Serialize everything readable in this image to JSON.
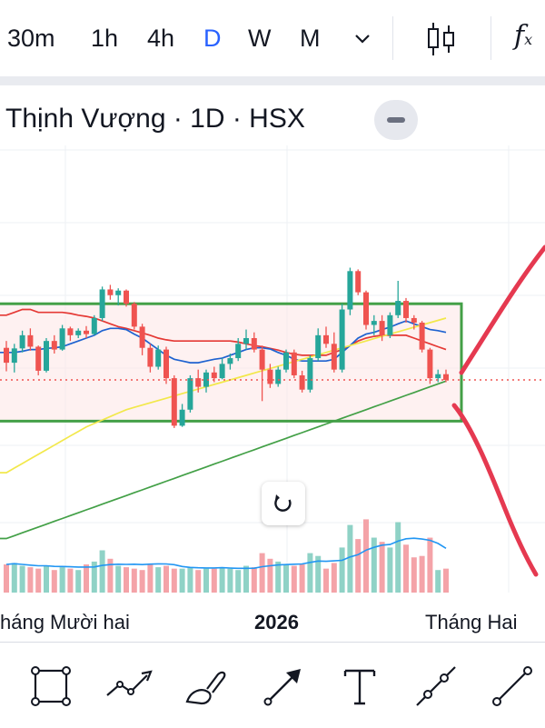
{
  "timeframes": [
    {
      "label": "30m",
      "active": false
    },
    {
      "label": "1h",
      "active": false
    },
    {
      "label": "4h",
      "active": false
    },
    {
      "label": "D",
      "active": true
    },
    {
      "label": "W",
      "active": false
    },
    {
      "label": "M",
      "active": false
    }
  ],
  "timeframe_more_icon": "chevron-down-icon",
  "chart_type_icon": "candlestick-icon",
  "indicators_icon": "function-icon",
  "symbol": {
    "title": "Thịnh Vượng · 1D · HSX",
    "collapse_icon": "minus-icon"
  },
  "time_axis": {
    "labels": [
      "háng Mười hai",
      "2026",
      "Tháng Hai"
    ]
  },
  "reset_icon": "reset-rotate-icon",
  "drawing_tools": [
    {
      "name": "rectangle-tool",
      "icon": "rectangle-icon"
    },
    {
      "name": "polyline-tool",
      "icon": "polyline-icon"
    },
    {
      "name": "brush-tool",
      "icon": "brush-icon"
    },
    {
      "name": "arrow-tool",
      "icon": "arrow-icon"
    },
    {
      "name": "text-tool",
      "icon": "text-icon"
    },
    {
      "name": "trendline-tool",
      "icon": "trendline-icon"
    },
    {
      "name": "line-tool",
      "icon": "line-icon"
    }
  ],
  "colors": {
    "up": "#26a69a",
    "down": "#ef5350",
    "ma_red": "#e53935",
    "ma_blue": "#1e62d0",
    "ma_yellow": "#f2e84b",
    "ma_green": "#43a047",
    "box": "#43a047",
    "box_fill": "#fde7e7",
    "drawn_arrow": "#e53950",
    "vol_line": "#2196f3",
    "active_tab": "#2962ff"
  },
  "chart_data": {
    "type": "candlestick",
    "ohlc": [
      [
        28.38,
        28.5,
        27.97,
        28.12
      ],
      [
        28.12,
        28.45,
        27.95,
        28.37
      ],
      [
        28.37,
        28.68,
        28.3,
        28.6
      ],
      [
        28.6,
        28.72,
        28.33,
        28.4
      ],
      [
        28.4,
        28.42,
        27.9,
        27.98
      ],
      [
        27.98,
        28.55,
        27.95,
        28.5
      ],
      [
        28.5,
        28.6,
        28.28,
        28.35
      ],
      [
        28.35,
        28.78,
        28.33,
        28.72
      ],
      [
        28.72,
        28.75,
        28.5,
        28.6
      ],
      [
        28.6,
        28.72,
        28.55,
        28.68
      ],
      [
        28.68,
        28.76,
        28.55,
        28.62
      ],
      [
        28.62,
        28.95,
        28.6,
        28.9
      ],
      [
        28.9,
        29.45,
        28.85,
        29.4
      ],
      [
        29.4,
        29.48,
        29.22,
        29.3
      ],
      [
        29.3,
        29.42,
        29.12,
        29.38
      ],
      [
        29.38,
        29.4,
        29.1,
        29.15
      ],
      [
        29.15,
        29.18,
        28.7,
        28.75
      ],
      [
        28.75,
        28.8,
        28.25,
        28.38
      ],
      [
        28.38,
        28.45,
        27.95,
        28.05
      ],
      [
        28.05,
        28.42,
        28.0,
        28.35
      ],
      [
        28.35,
        28.4,
        27.75,
        27.85
      ],
      [
        27.85,
        27.9,
        26.98,
        27.02
      ],
      [
        27.02,
        27.4,
        27.0,
        27.3
      ],
      [
        27.3,
        27.9,
        27.25,
        27.85
      ],
      [
        27.85,
        28.0,
        27.6,
        27.7
      ],
      [
        27.7,
        28.0,
        27.6,
        27.95
      ],
      [
        27.95,
        28.05,
        27.78,
        27.85
      ],
      [
        27.85,
        28.2,
        27.83,
        28.1
      ],
      [
        28.1,
        28.28,
        28.0,
        28.2
      ],
      [
        28.2,
        28.55,
        28.15,
        28.45
      ],
      [
        28.45,
        28.7,
        28.35,
        28.55
      ],
      [
        28.55,
        28.65,
        28.3,
        28.35
      ],
      [
        28.35,
        28.42,
        27.45,
        28.0
      ],
      [
        28.0,
        28.1,
        27.68,
        27.75
      ],
      [
        27.75,
        28.05,
        27.7,
        28.0
      ],
      [
        28.0,
        28.35,
        27.95,
        28.3
      ],
      [
        28.3,
        28.35,
        27.85,
        27.9
      ],
      [
        27.9,
        27.98,
        27.6,
        27.65
      ],
      [
        27.65,
        28.25,
        27.6,
        28.2
      ],
      [
        28.2,
        28.72,
        28.15,
        28.6
      ],
      [
        28.6,
        28.75,
        28.38,
        28.45
      ],
      [
        28.45,
        28.65,
        27.95,
        28.0
      ],
      [
        28.0,
        29.15,
        27.95,
        29.05
      ],
      [
        29.05,
        29.78,
        28.95,
        29.72
      ],
      [
        29.72,
        29.75,
        29.3,
        29.35
      ],
      [
        29.35,
        29.38,
        28.7,
        28.78
      ],
      [
        28.78,
        28.95,
        28.6,
        28.85
      ],
      [
        28.85,
        28.95,
        28.5,
        28.6
      ],
      [
        28.6,
        29.0,
        28.55,
        28.95
      ],
      [
        28.95,
        29.55,
        28.9,
        29.2
      ],
      [
        29.2,
        29.25,
        28.82,
        28.9
      ],
      [
        28.9,
        28.95,
        28.7,
        28.82
      ],
      [
        28.82,
        28.85,
        28.3,
        28.35
      ],
      [
        28.35,
        28.38,
        27.75,
        27.85
      ],
      [
        27.85,
        28.0,
        27.78,
        27.92
      ],
      [
        27.92,
        28.0,
        27.78,
        27.82
      ]
    ],
    "volume": [
      1.0,
      1.05,
      0.95,
      0.9,
      0.85,
      0.95,
      0.8,
      0.9,
      0.85,
      0.8,
      1.0,
      1.1,
      1.5,
      1.2,
      0.95,
      0.9,
      0.85,
      0.8,
      1.0,
      0.9,
      0.95,
      0.85,
      0.85,
      0.9,
      0.8,
      0.85,
      0.85,
      0.9,
      0.85,
      0.8,
      0.95,
      0.9,
      1.4,
      1.2,
      1.1,
      1.0,
      0.95,
      1.0,
      1.4,
      1.3,
      0.85,
      1.05,
      1.6,
      2.4,
      1.9,
      2.6,
      1.95,
      1.8,
      1.6,
      2.5,
      1.7,
      1.25,
      1.3,
      1.95,
      0.8,
      0.85
    ],
    "moving_averages": [
      {
        "color": "#e53935",
        "values": [
          28.95,
          29.0,
          29.05,
          29.05,
          29.0,
          29.0,
          29.0,
          29.0,
          28.98,
          28.95,
          28.93,
          28.9,
          28.85,
          28.8,
          28.75,
          28.72,
          28.68,
          28.64,
          28.6,
          28.55,
          28.52,
          28.5,
          28.5,
          28.5,
          28.5,
          28.5,
          28.5,
          28.5,
          28.5,
          28.48,
          28.45,
          28.42,
          28.4,
          28.37,
          28.34,
          28.3,
          28.27,
          28.25,
          28.25,
          28.25,
          28.25,
          28.3,
          28.35,
          28.42,
          28.5,
          28.55,
          28.58,
          28.6,
          28.6,
          28.6,
          28.6,
          28.55,
          28.5,
          28.45,
          28.4,
          28.35
        ]
      },
      {
        "color": "#1e62d0",
        "values": [
          28.3,
          28.3,
          28.32,
          28.35,
          28.35,
          28.37,
          28.38,
          28.4,
          28.45,
          28.5,
          28.55,
          28.6,
          28.68,
          28.72,
          28.72,
          28.7,
          28.62,
          28.55,
          28.45,
          28.35,
          28.25,
          28.18,
          28.15,
          28.12,
          28.12,
          28.15,
          28.18,
          28.2,
          28.25,
          28.3,
          28.35,
          28.38,
          28.38,
          28.36,
          28.3,
          28.25,
          28.18,
          28.15,
          28.15,
          28.15,
          28.15,
          28.18,
          28.3,
          28.42,
          28.55,
          28.62,
          28.65,
          28.7,
          28.74,
          28.8,
          28.85,
          28.8,
          28.75,
          28.7,
          28.68,
          28.65
        ]
      },
      {
        "color": "#f2e84b",
        "values": [
          26.2,
          26.28,
          26.36,
          26.44,
          26.52,
          26.6,
          26.68,
          26.76,
          26.84,
          26.92,
          27.0,
          27.06,
          27.12,
          27.18,
          27.24,
          27.3,
          27.34,
          27.38,
          27.42,
          27.46,
          27.5,
          27.54,
          27.58,
          27.62,
          27.66,
          27.7,
          27.74,
          27.78,
          27.82,
          27.86,
          27.9,
          27.94,
          27.98,
          28.02,
          28.06,
          28.1,
          28.14,
          28.18,
          28.22,
          28.26,
          28.3,
          28.34,
          28.38,
          28.42,
          28.46,
          28.5,
          28.54,
          28.58,
          28.62,
          28.66,
          28.7,
          28.74,
          28.78,
          28.82,
          28.86,
          28.9
        ]
      },
      {
        "color": "#43a047",
        "values": [
          25.05,
          25.1,
          25.15,
          25.2,
          25.25,
          25.3,
          25.35,
          25.4,
          25.45,
          25.5,
          25.55,
          25.6,
          25.65,
          25.7,
          25.75,
          25.8,
          25.85,
          25.9,
          25.95,
          26.0,
          26.05,
          26.1,
          26.15,
          26.2,
          26.25,
          26.3,
          26.35,
          26.4,
          26.45,
          26.5,
          26.55,
          26.6,
          26.65,
          26.7,
          26.75,
          26.8,
          26.85,
          26.9,
          26.95,
          27.0,
          27.05,
          27.1,
          27.15,
          27.2,
          27.25,
          27.3,
          27.35,
          27.4,
          27.45,
          27.5,
          27.55,
          27.6,
          27.65,
          27.7,
          27.75,
          27.8
        ]
      }
    ],
    "last_price": 27.82,
    "range_box": {
      "high": 29.15,
      "low": 27.1
    },
    "x_axis_labels": [
      "háng Mười hai",
      "2026",
      "Tháng Hai"
    ],
    "grid": true
  }
}
